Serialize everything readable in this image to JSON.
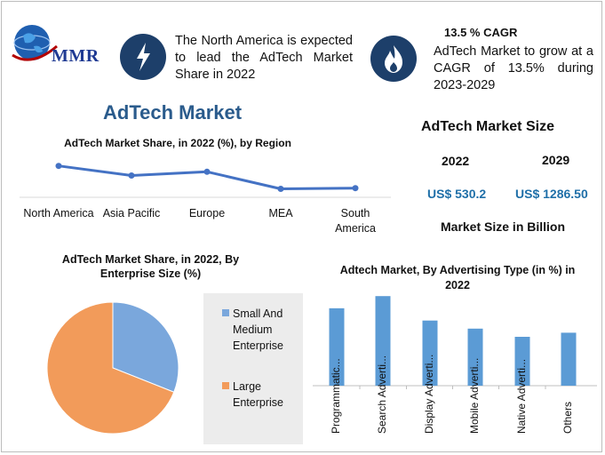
{
  "brand": {
    "logo_text": "MMR"
  },
  "header": {
    "left_note": "The North America is expected to lead the AdTech Market Share in 2022",
    "right_title": "13.5 % CAGR",
    "right_note": "AdTech Market to grow at a CAGR of 13.5% during 2023-2029"
  },
  "main_title": "AdTech Market",
  "market_size": {
    "heading": "AdTech Market Size",
    "year_1": "2022",
    "year_2": "2029",
    "value_1": "US$ 530.2",
    "value_2": "US$ 1286.50",
    "note": "Market Size in Billion"
  },
  "chart_data": [
    {
      "type": "line",
      "title": "AdTech Market Share, in 2022 (%), by Region",
      "categories": [
        "North America",
        "Asia Pacific",
        "Europe",
        "MEA",
        "South America"
      ],
      "values": [
        40,
        27,
        32,
        9,
        10
      ],
      "ylim": [
        0,
        60
      ],
      "color": "#4472c4",
      "grid": false
    },
    {
      "type": "pie",
      "title": "AdTech Market Share, in 2022, By Enterprise Size (%)",
      "categories": [
        "Small And Medium Enterprise",
        "Large Enterprise"
      ],
      "values": [
        31,
        69
      ],
      "colors": [
        "#7aa7dc",
        "#f29b5a"
      ],
      "legend": "right"
    },
    {
      "type": "bar",
      "title": "Adtech Market, By Advertising Type (in %) in 2022",
      "categories": [
        "Programmatic...",
        "Search Adverti...",
        "Display Adverti...",
        "Mobile Adverti...",
        "Native Adverti...",
        "Others"
      ],
      "values": [
        19,
        22,
        16,
        14,
        12,
        13
      ],
      "ylim": [
        0,
        24
      ],
      "color": "#5b9bd5",
      "grid": false
    }
  ]
}
